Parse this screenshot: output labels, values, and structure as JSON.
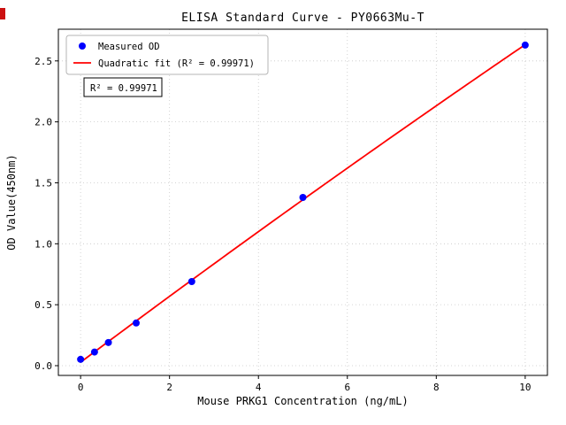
{
  "chart_data": {
    "type": "scatter",
    "title": "ELISA Standard Curve - PY0663Mu-T",
    "xlabel": "Mouse PRKG1 Concentration (ng/mL)",
    "ylabel": "OD Value(450nm)",
    "xlim": [
      -0.5,
      10.5
    ],
    "ylim": [
      -0.08,
      2.76
    ],
    "xticks": [
      0,
      2,
      4,
      6,
      8,
      10
    ],
    "yticks": [
      0,
      0.5,
      1,
      1.5,
      2,
      2.5
    ],
    "grid": true,
    "grid_style": "dotted",
    "legend_position": "upper-left",
    "series": [
      {
        "name": "Measured OD",
        "kind": "scatter",
        "color": "#0000ff",
        "x": [
          0,
          0.313,
          0.625,
          1.25,
          2.5,
          5,
          10
        ],
        "y": [
          0.052,
          0.112,
          0.19,
          0.35,
          0.69,
          1.38,
          2.63
        ]
      },
      {
        "name": "Quadratic fit (R² = 0.99971)",
        "kind": "line",
        "color": "#ff0000",
        "fit": "quadratic",
        "source_series": 0
      }
    ],
    "annotation": {
      "text": "R² = 0.99971"
    },
    "r_squared": "0.99971",
    "axis_color": "#000000",
    "grid_color": "#c8c8c8",
    "legend_border_color": "#b5b5b5"
  },
  "artifacts": {
    "corner_mark_color": "#cc1111"
  }
}
